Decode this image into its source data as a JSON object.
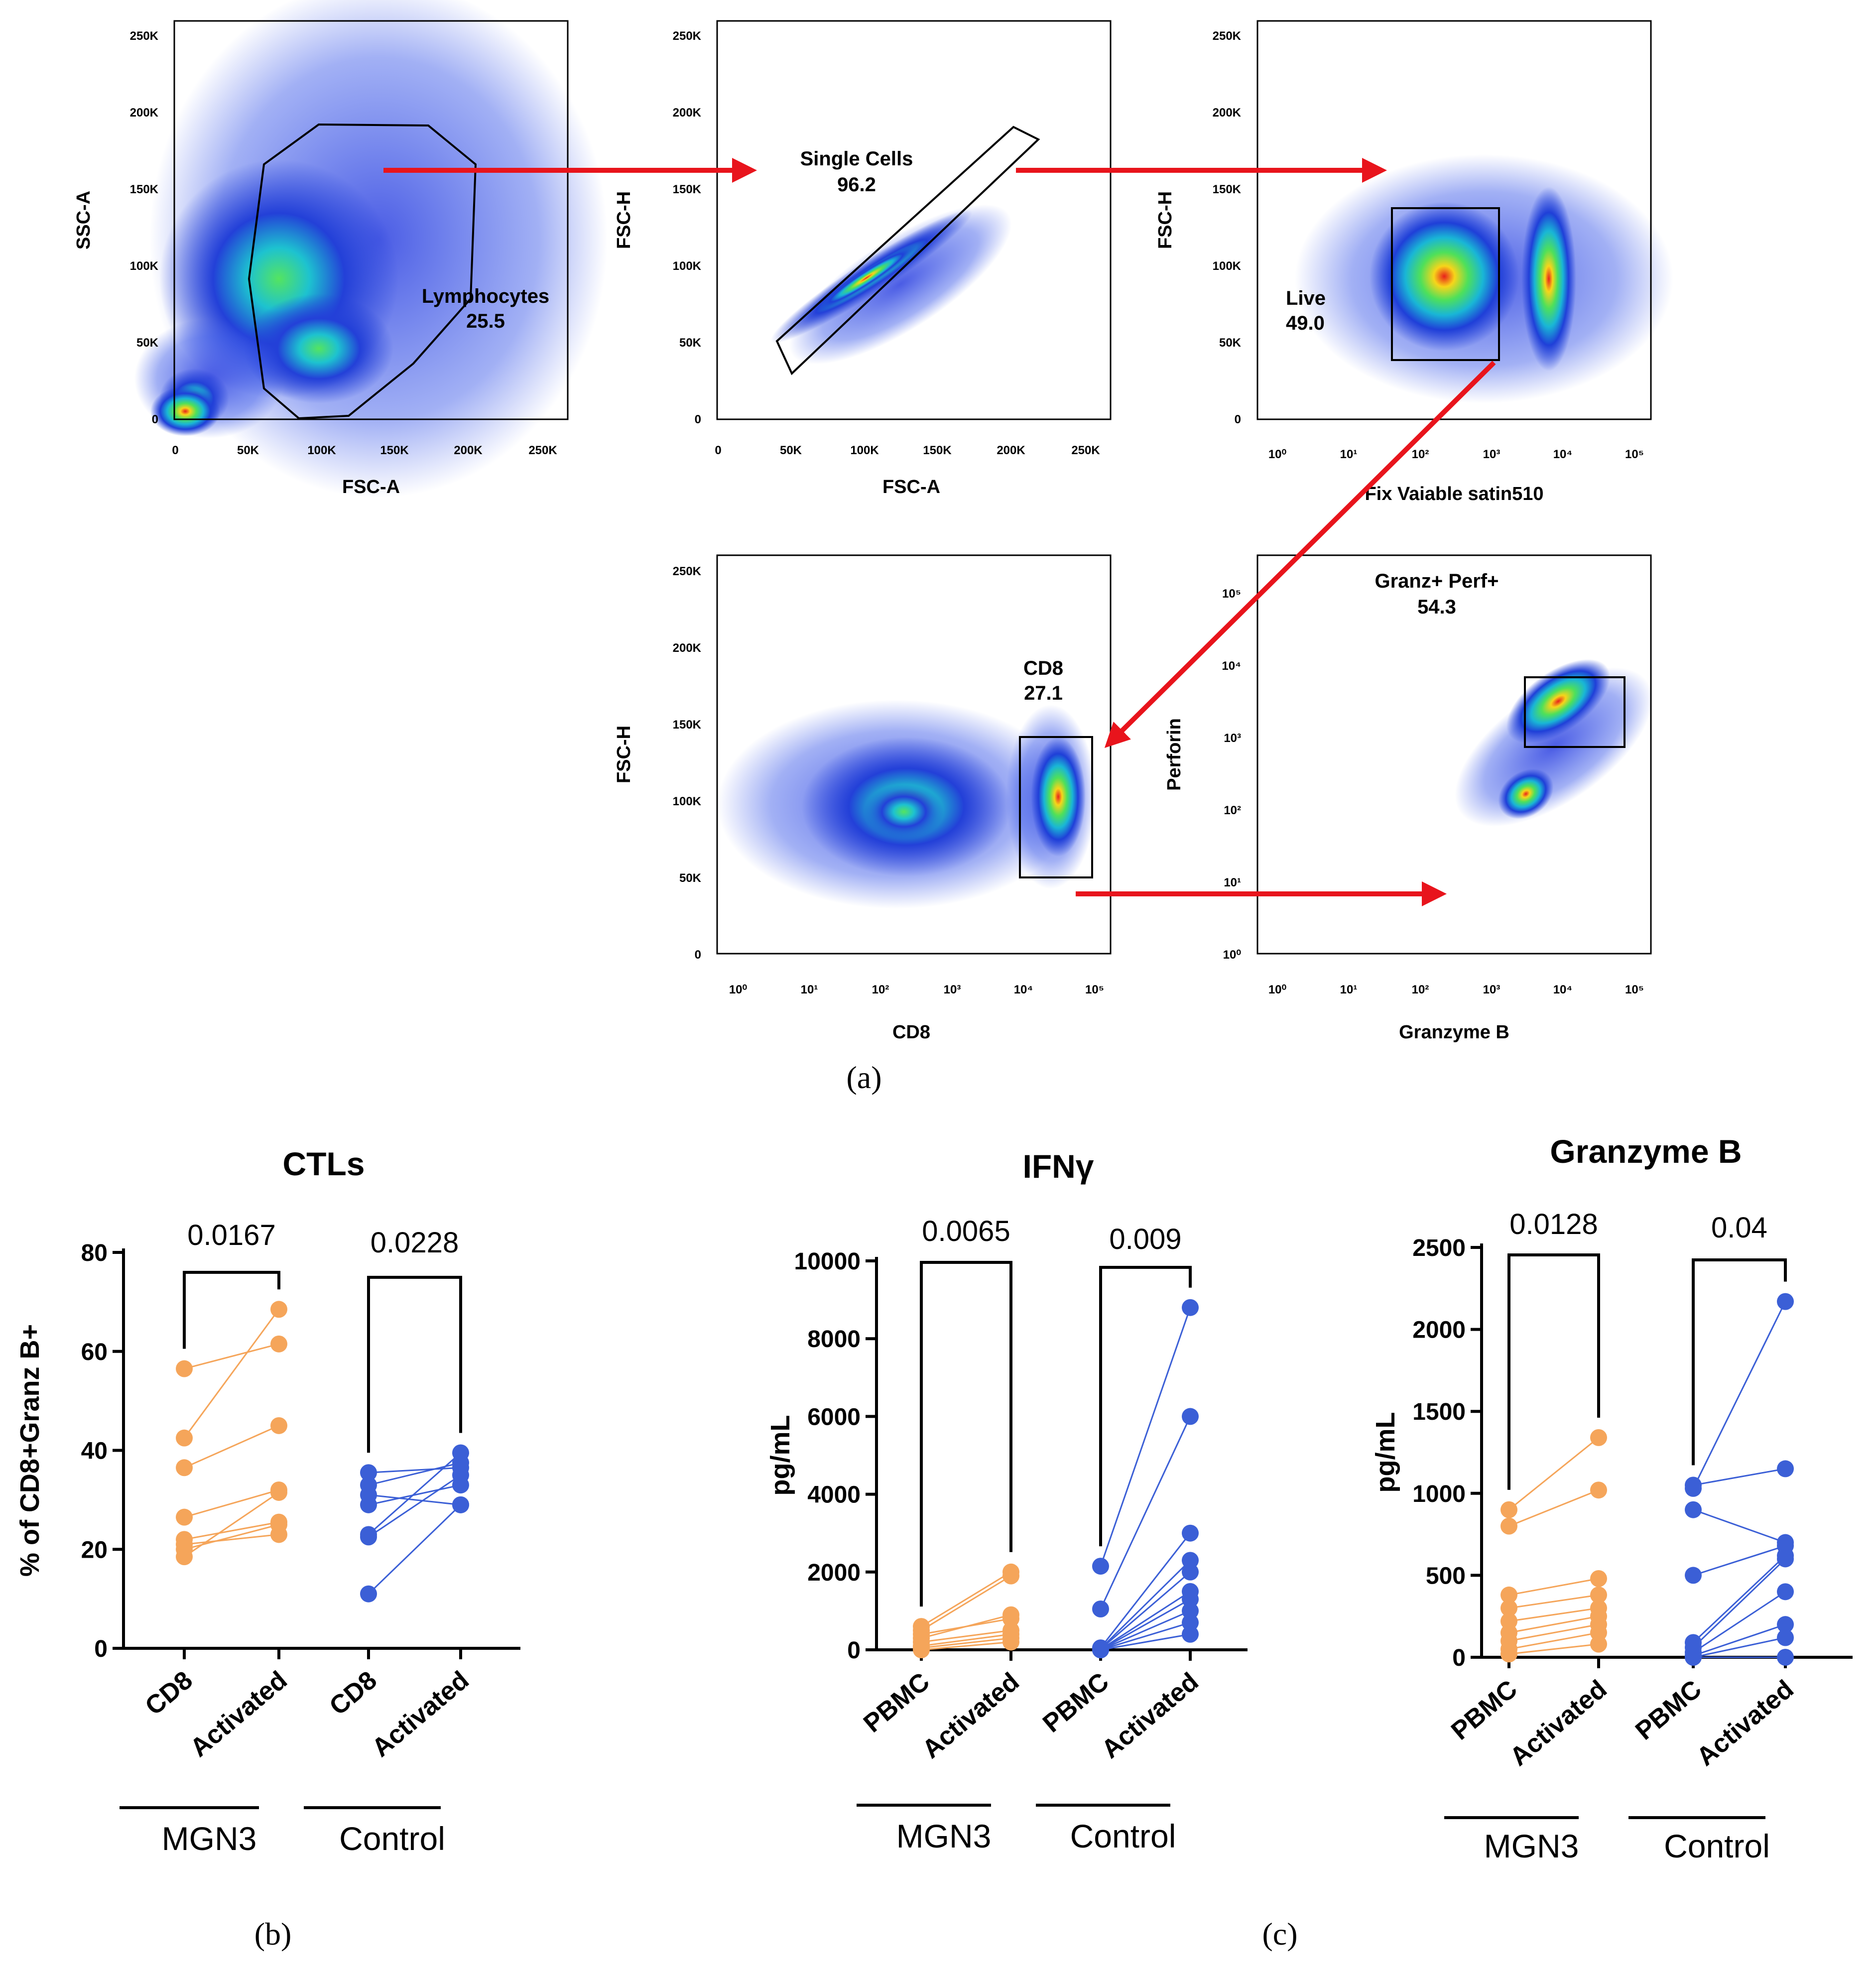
{
  "flow_panels": [
    {
      "id": "fsc-ssc",
      "xlabel": "FSC-A",
      "ylabel": "SSC-A",
      "xticks": [
        "0",
        "50K",
        "100K",
        "150K",
        "200K",
        "250K"
      ],
      "yticks": [
        "0",
        "50K",
        "100K",
        "150K",
        "200K",
        "250K"
      ],
      "gate_name": "Lymphocytes",
      "gate_value": "25.5"
    },
    {
      "id": "singlets",
      "xlabel": "FSC-A",
      "ylabel": "FSC-H",
      "xticks": [
        "0",
        "50K",
        "100K",
        "150K",
        "200K",
        "250K"
      ],
      "yticks": [
        "0",
        "50K",
        "100K",
        "150K",
        "200K",
        "250K"
      ],
      "gate_name": "Single Cells",
      "gate_value": "96.2"
    },
    {
      "id": "live",
      "xlabel": "Fix Vaiable  satin510",
      "ylabel": "FSC-H",
      "xticks": [
        "10⁰",
        "10¹",
        "10²",
        "10³",
        "10⁴",
        "10⁵"
      ],
      "yticks": [
        "0",
        "50K",
        "100K",
        "150K",
        "200K",
        "250K"
      ],
      "gate_name": "Live",
      "gate_value": "49.0"
    },
    {
      "id": "cd8",
      "xlabel": "CD8",
      "ylabel": "FSC-H",
      "xticks": [
        "10⁰",
        "10¹",
        "10²",
        "10³",
        "10⁴",
        "10⁵"
      ],
      "yticks": [
        "0",
        "50K",
        "100K",
        "150K",
        "200K",
        "250K"
      ],
      "gate_name": "CD8",
      "gate_value": "27.1"
    },
    {
      "id": "granz",
      "xlabel": "Granzyme B",
      "ylabel": "Perforin",
      "xticks": [
        "10⁰",
        "10¹",
        "10²",
        "10³",
        "10⁴",
        "10⁵"
      ],
      "yticks": [
        "10⁰",
        "10¹",
        "10²",
        "10³",
        "10⁴",
        "10⁵"
      ],
      "gate_name": "Granz+ Perf+",
      "gate_value": "54.3"
    }
  ],
  "panel_labels": {
    "a": "(a)",
    "b": "(b)",
    "c": "(c)"
  },
  "colors": {
    "mgn3": "#f5a55a",
    "control": "#3b5fd6",
    "arrow": "#e8141c"
  },
  "chart_data": [
    {
      "type": "line",
      "title": "CTLs",
      "ylabel": "% of CD8+Granz B+",
      "ylim": [
        0,
        80
      ],
      "yticks": [
        "0",
        "20",
        "40",
        "60",
        "80"
      ],
      "categories": [
        "CD8",
        "Activated",
        "CD8",
        "Activated"
      ],
      "groups": [
        {
          "name": "MGN3",
          "pvalue": "0.0167"
        },
        {
          "name": "Control",
          "pvalue": "0.0228"
        }
      ],
      "series": [
        {
          "name": "MGN3",
          "pairs": [
            [
              56.5,
              61.5
            ],
            [
              42.5,
              68.5
            ],
            [
              36.5,
              45
            ],
            [
              26.5,
              32
            ],
            [
              22,
              25.5
            ],
            [
              21,
              23
            ],
            [
              20,
              25
            ],
            [
              18.5,
              31.5
            ]
          ]
        },
        {
          "name": "Control",
          "pairs": [
            [
              35.5,
              36.5
            ],
            [
              33,
              37.5
            ],
            [
              31,
              29
            ],
            [
              29,
              33
            ],
            [
              23,
              39.5
            ],
            [
              22.5,
              35
            ],
            [
              11,
              29
            ]
          ]
        }
      ]
    },
    {
      "type": "line",
      "title": "IFNγ",
      "ylabel": "pg/mL",
      "ylim": [
        0,
        10000
      ],
      "yticks": [
        "0",
        "2000",
        "4000",
        "6000",
        "8000",
        "10000"
      ],
      "categories": [
        "PBMC",
        "Activated",
        "PBMC",
        "Activated"
      ],
      "groups": [
        {
          "name": "MGN3",
          "pvalue": "0.0065"
        },
        {
          "name": "Control",
          "pvalue": "0.009"
        }
      ],
      "series": [
        {
          "name": "MGN3",
          "pairs": [
            [
              600,
              2000
            ],
            [
              500,
              1900
            ],
            [
              400,
              800
            ],
            [
              300,
              900
            ],
            [
              200,
              500
            ],
            [
              100,
              400
            ],
            [
              50,
              300
            ],
            [
              0,
              200
            ]
          ]
        },
        {
          "name": "Control",
          "pairs": [
            [
              2150,
              8800
            ],
            [
              1050,
              6000
            ],
            [
              50,
              3000
            ],
            [
              30,
              2300
            ],
            [
              20,
              2000
            ],
            [
              10,
              1500
            ],
            [
              0,
              1300
            ],
            [
              0,
              1000
            ],
            [
              0,
              700
            ],
            [
              0,
              400
            ]
          ]
        }
      ]
    },
    {
      "type": "line",
      "title": "Granzyme B",
      "ylabel": "pg/mL",
      "ylim": [
        0,
        2500
      ],
      "yticks": [
        "0",
        "500",
        "1000",
        "1500",
        "2000",
        "2500"
      ],
      "categories": [
        "PBMC",
        "Activated",
        "PBMC",
        "Activated"
      ],
      "groups": [
        {
          "name": "MGN3",
          "pvalue": "0.0128"
        },
        {
          "name": "Control",
          "pvalue": "0.04"
        }
      ],
      "series": [
        {
          "name": "MGN3",
          "pairs": [
            [
              900,
              1340
            ],
            [
              800,
              1020
            ],
            [
              380,
              480
            ],
            [
              300,
              380
            ],
            [
              220,
              300
            ],
            [
              150,
              250
            ],
            [
              100,
              200
            ],
            [
              50,
              150
            ],
            [
              20,
              80
            ]
          ]
        },
        {
          "name": "Control",
          "pairs": [
            [
              1050,
              1150
            ],
            [
              1030,
              2170
            ],
            [
              900,
              700
            ],
            [
              500,
              680
            ],
            [
              90,
              620
            ],
            [
              60,
              600
            ],
            [
              30,
              400
            ],
            [
              10,
              200
            ],
            [
              0,
              120
            ],
            [
              0,
              0
            ]
          ]
        }
      ]
    }
  ]
}
